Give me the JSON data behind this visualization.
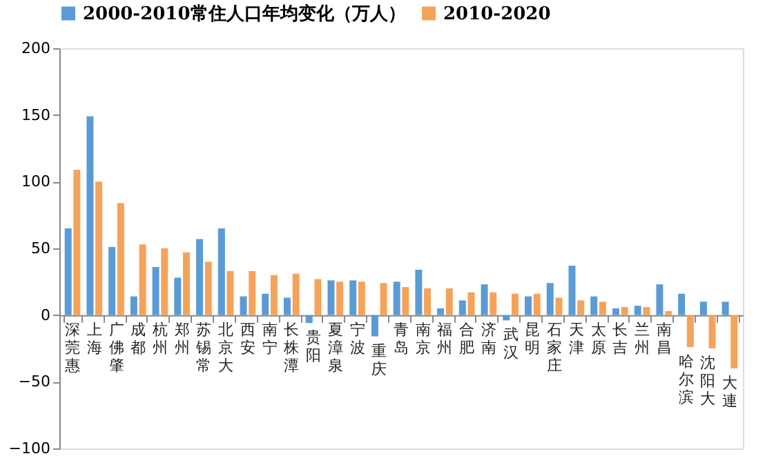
{
  "chart_data": {
    "type": "bar",
    "categories": [
      "深莞惠",
      "上海",
      "广佛肇",
      "成都",
      "杭州",
      "郑州",
      "苏锡常",
      "北京大",
      "西安",
      "南宁",
      "长株潭",
      "贵阳",
      "夏漳泉",
      "宁波",
      "重庆",
      "青岛",
      "南京",
      "福州",
      "合肥",
      "济南",
      "武汉",
      "昆明",
      "石家庄",
      "天津",
      "太原",
      "长吉",
      "兰州",
      "南昌",
      "哈尔滨",
      "沈阳大",
      "大連"
    ],
    "series": [
      {
        "name": "2000-2010常住人口年均变化（万人）",
        "color": "#5b9bd5",
        "values": [
          65,
          149,
          51,
          14,
          36,
          28,
          57,
          65,
          14,
          16,
          13,
          -6,
          26,
          26,
          -16,
          25,
          34,
          5,
          11,
          23,
          -4,
          14,
          24,
          37,
          14,
          5,
          7,
          23,
          16,
          10,
          10
        ]
      },
      {
        "name": "2010-2020",
        "color": "#f5a35a",
        "values": [
          109,
          100,
          84,
          53,
          50,
          47,
          40,
          33,
          33,
          30,
          31,
          27,
          25,
          25,
          24,
          21,
          20,
          20,
          17,
          17,
          16,
          16,
          13,
          11,
          10,
          6,
          6,
          3,
          -24,
          -25,
          -40
        ]
      }
    ],
    "ylim": [
      -100,
      200
    ],
    "yticks": [
      -100,
      -50,
      0,
      50,
      100,
      150,
      200
    ],
    "grid": false,
    "legend": "top"
  }
}
